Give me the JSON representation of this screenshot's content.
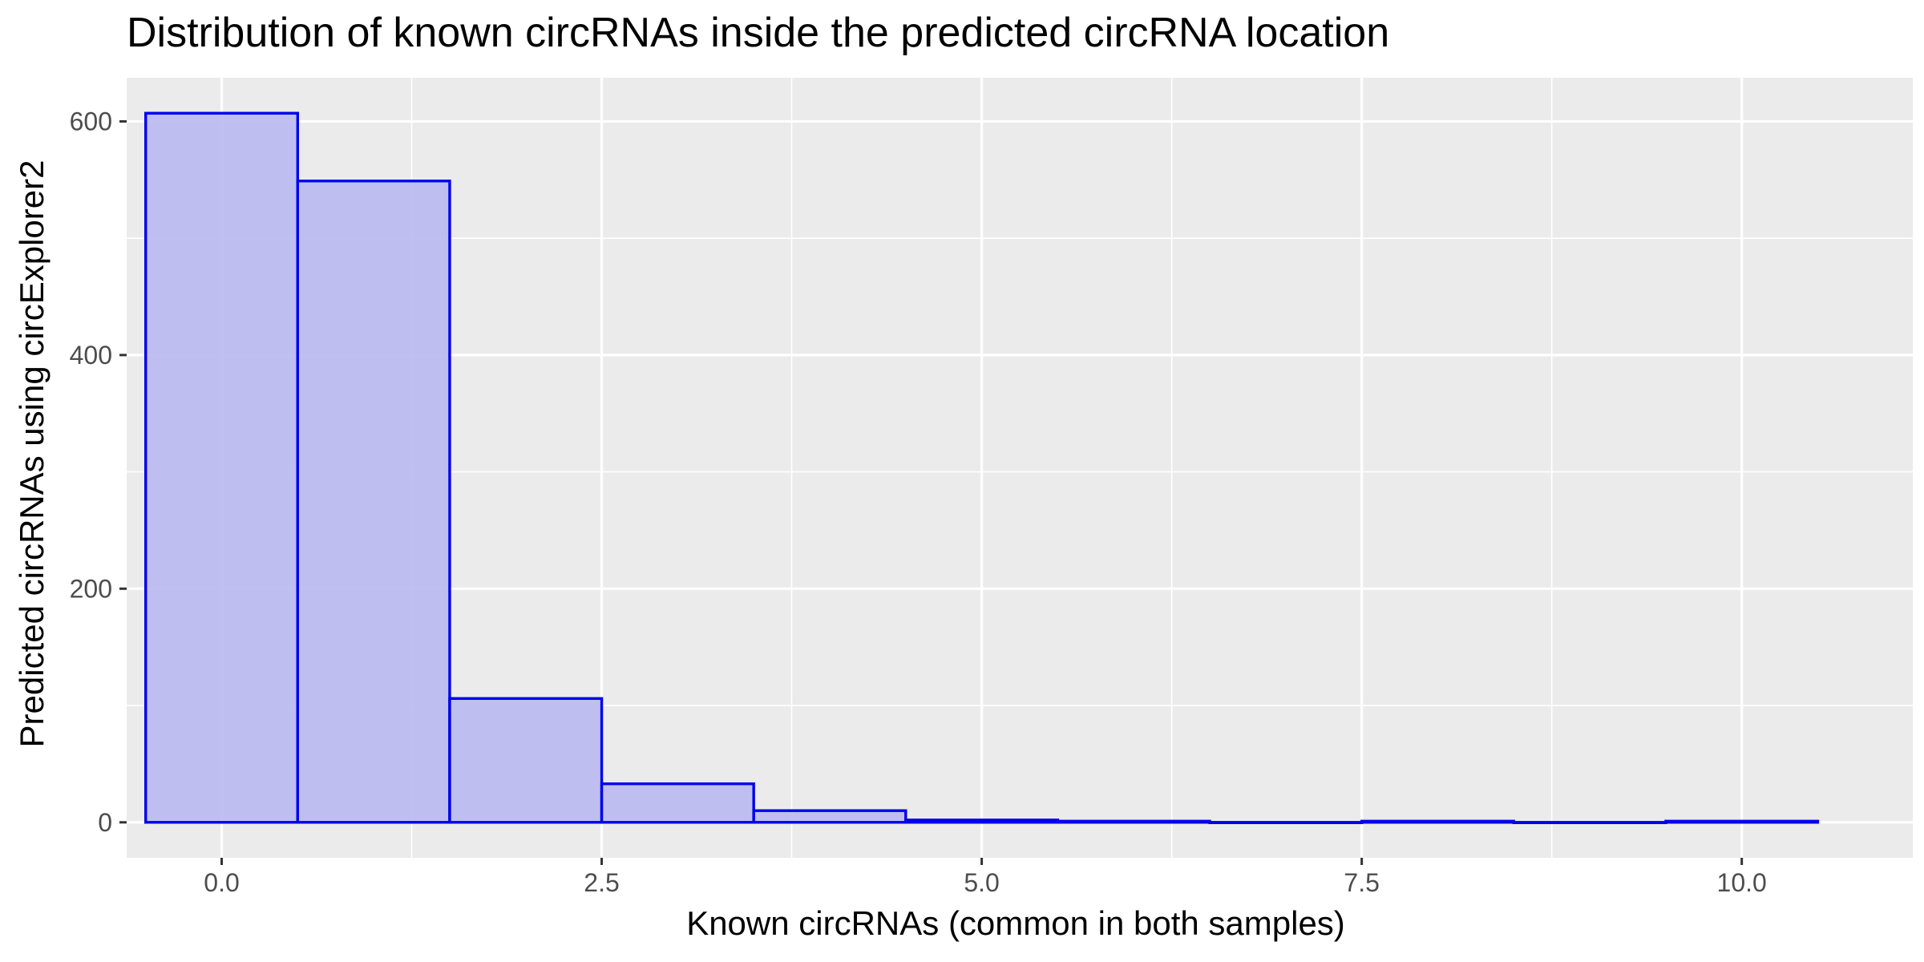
{
  "chart_data": {
    "type": "bar",
    "title": "Distribution of known circRNAs inside the predicted circRNA location",
    "xlabel": "Known circRNAs (common in both samples)",
    "ylabel": "Predicted circRNAs using circExplorer2",
    "bin_width": 1,
    "bins": [
      {
        "x": 0,
        "count": 607
      },
      {
        "x": 1,
        "count": 549
      },
      {
        "x": 2,
        "count": 106
      },
      {
        "x": 3,
        "count": 33
      },
      {
        "x": 4,
        "count": 10
      },
      {
        "x": 5,
        "count": 2
      },
      {
        "x": 6,
        "count": 1
      },
      {
        "x": 7,
        "count": 0
      },
      {
        "x": 8,
        "count": 1
      },
      {
        "x": 9,
        "count": 0
      },
      {
        "x": 10,
        "count": 1
      }
    ],
    "xlim": [
      -0.625,
      11.125
    ],
    "ylim": [
      -30.35,
      637.35
    ],
    "x_ticks": [
      0,
      2.5,
      5,
      7.5,
      10
    ],
    "x_tick_labels": [
      "0.0",
      "2.5",
      "5.0",
      "7.5",
      "10.0"
    ],
    "y_ticks": [
      0,
      200,
      400,
      600
    ],
    "y_tick_labels": [
      "0",
      "200",
      "400",
      "600"
    ],
    "grid": true,
    "colors": {
      "panel_background": "#ebebeb",
      "grid": "#ffffff",
      "bar_fill": "#bcbdf0",
      "bar_outline": "#0000ee"
    }
  }
}
